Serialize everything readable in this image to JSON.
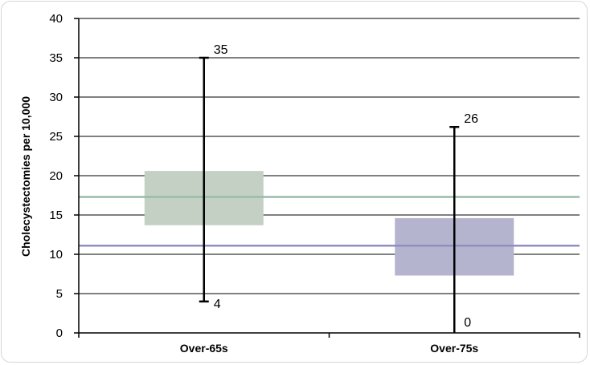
{
  "chart_data": {
    "type": "boxplot",
    "title": "",
    "xlabel": "",
    "ylabel": "Cholecystectomies per 10,000",
    "ylim": [
      0,
      40
    ],
    "y_ticks": [
      "0",
      "5",
      "10",
      "15",
      "20",
      "25",
      "30",
      "35",
      "40"
    ],
    "grid": true,
    "categories": [
      "Over-65s",
      "Over-75s"
    ],
    "series": [
      {
        "min": 4,
        "q1": 13.7,
        "q3": 20.6,
        "max": 35,
        "min_label": "4",
        "max_label": "35",
        "color": "#c4d0c4",
        "mean_line": 17.3,
        "line_color": "#98bca8"
      },
      {
        "min": 0,
        "q1": 7.3,
        "q3": 14.6,
        "max": 26.2,
        "min_label": "0",
        "max_label": "26",
        "color": "#b4b4cf",
        "mean_line": 11.1,
        "line_color": "#9090c0"
      }
    ]
  }
}
